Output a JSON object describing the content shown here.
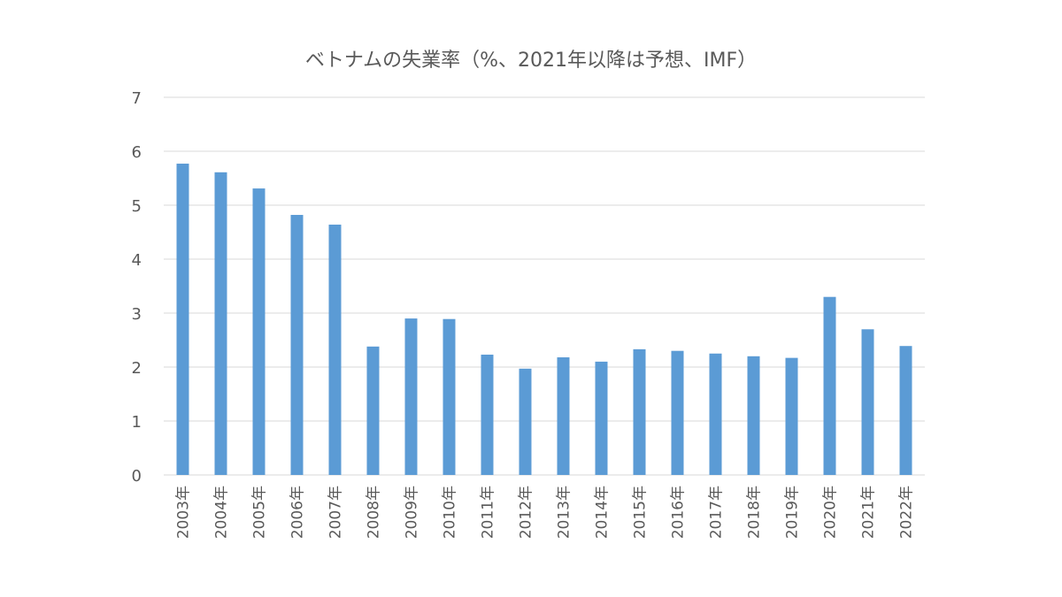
{
  "chart_data": {
    "type": "bar",
    "title": "ベトナムの失業率（%、2021年以降は予想、IMF）",
    "xlabel": "",
    "ylabel": "",
    "ylim": [
      0,
      7
    ],
    "yticks": [
      "0",
      "1",
      "2",
      "3",
      "4",
      "5",
      "6",
      "7"
    ],
    "grid": true,
    "categories": [
      "2003年",
      "2004年",
      "2005年",
      "2006年",
      "2007年",
      "2008年",
      "2009年",
      "2010年",
      "2011年",
      "2012年",
      "2013年",
      "2014年",
      "2015年",
      "2016年",
      "2017年",
      "2018年",
      "2019年",
      "2020年",
      "2021年",
      "2022年"
    ],
    "values": [
      5.77,
      5.61,
      5.31,
      4.82,
      4.64,
      2.38,
      2.9,
      2.89,
      2.23,
      1.97,
      2.18,
      2.1,
      2.33,
      2.3,
      2.25,
      2.2,
      2.17,
      3.3,
      2.7,
      2.39
    ],
    "bar_color": "#5B9BD5",
    "grid_color": "#D9D9D9"
  }
}
